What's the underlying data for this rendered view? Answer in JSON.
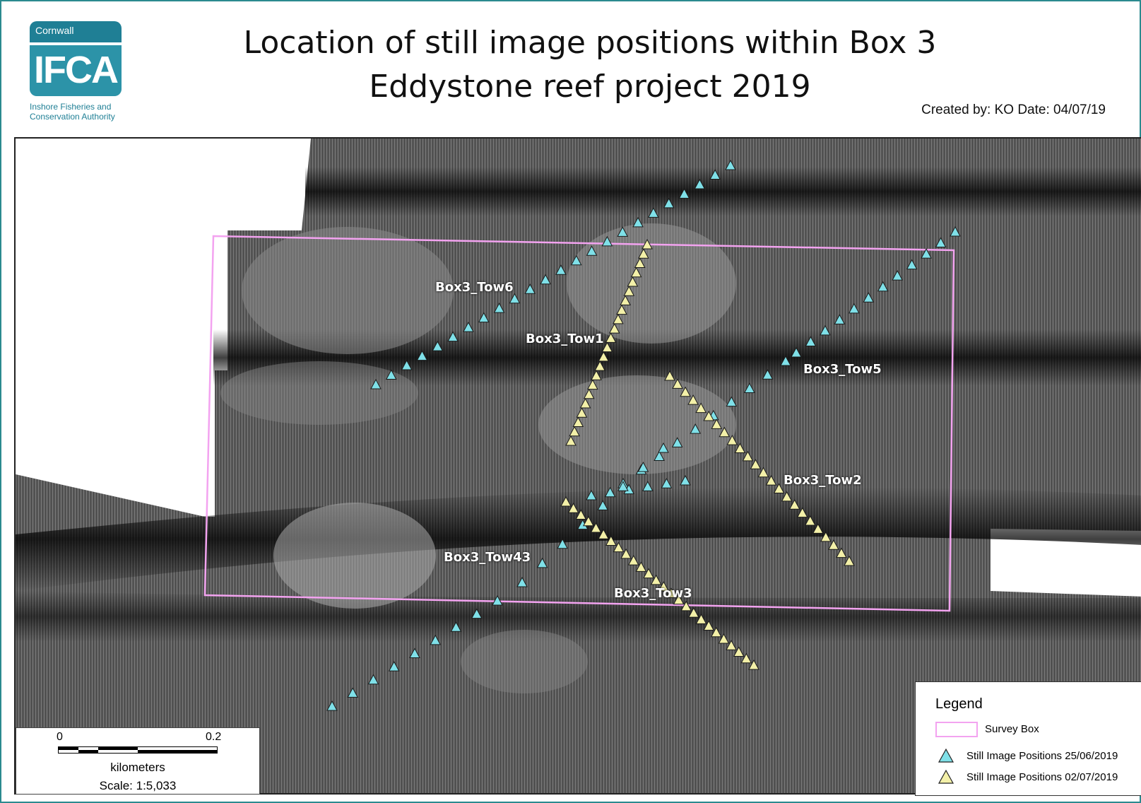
{
  "header": {
    "logo": {
      "top_text": "Cornwall",
      "main_text": "IFCA",
      "sub_line1": "Inshore Fisheries and",
      "sub_line2": "Conservation Authority",
      "color": "#1f7f95"
    },
    "title_line1": "Location of still image positions within Box 3",
    "title_line2": "Eddystone reef project 2019",
    "credit": "Created by: KO Date: 04/07/19"
  },
  "map": {
    "tow_labels": [
      "Box3_Tow6",
      "Box3_Tow1",
      "Box3_Tow5",
      "Box3_Tow2",
      "Box3_Tow43",
      "Box3_Tow3"
    ],
    "survey_box_color": "#f3a3f0",
    "series_colors": {
      "positions_2506": "#7fe0e8",
      "positions_0207": "#f3f0a8"
    }
  },
  "scale": {
    "start": "0",
    "end": "0.2",
    "unit": "kilometers",
    "ratio": "Scale: 1:5,033"
  },
  "legend": {
    "title": "Legend",
    "items": [
      {
        "label": "Survey Box",
        "symbol": "rectangle"
      },
      {
        "label": "Still Image Positions 25/06/2019",
        "symbol": "triangle-cyan"
      },
      {
        "label": "Still Image Positions 02/07/2019",
        "symbol": "triangle-yellow"
      }
    ]
  }
}
